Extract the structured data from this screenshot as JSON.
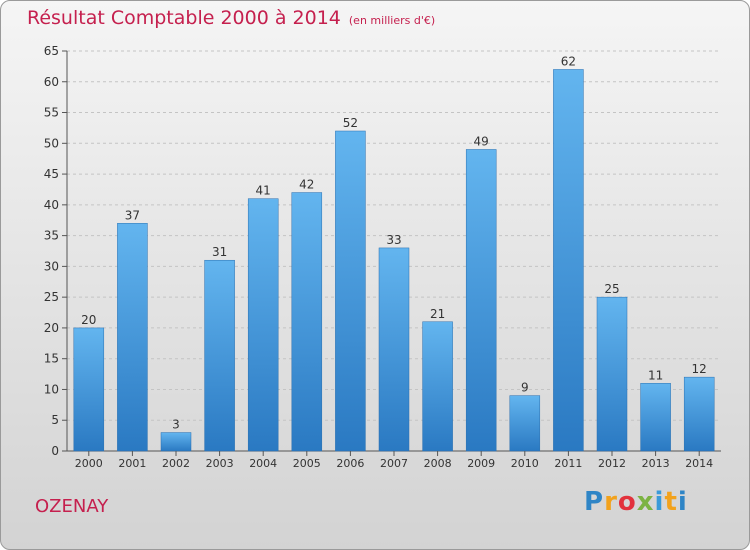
{
  "title": "Résultat Comptable 2000 à 2014",
  "unit_label": "(en milliers d'€)",
  "location": "OZENAY",
  "brand": "Proxiti",
  "colors": {
    "title": "#c5204e",
    "bar_top": "#63b5ef",
    "bar_bottom": "#2a79c2"
  },
  "chart_data": {
    "type": "bar",
    "title": "Résultat Comptable 2000 à 2014",
    "xlabel": "",
    "ylabel": "",
    "ylim": [
      0,
      65
    ],
    "yticks": [
      0,
      5,
      10,
      15,
      20,
      25,
      30,
      35,
      40,
      45,
      50,
      55,
      60,
      65
    ],
    "grid": true,
    "categories": [
      "2000",
      "2001",
      "2002",
      "2003",
      "2004",
      "2005",
      "2006",
      "2007",
      "2008",
      "2009",
      "2010",
      "2011",
      "2012",
      "2013",
      "2014"
    ],
    "values": [
      20,
      37,
      3,
      31,
      41,
      42,
      52,
      33,
      21,
      49,
      9,
      62,
      25,
      11,
      12
    ]
  }
}
